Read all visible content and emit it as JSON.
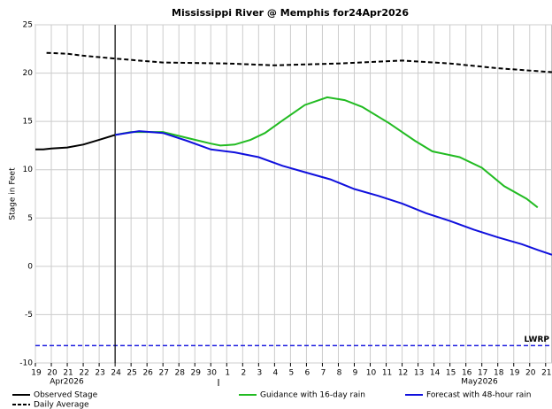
{
  "chart_data": {
    "type": "line",
    "title": "Mississippi River @ Memphis for24Apr2026",
    "y_label": "Stage in Feet",
    "month_labels": [
      {
        "value": 0.9,
        "label": "Apr2026"
      },
      {
        "value": 26.7,
        "label": "May2026"
      }
    ],
    "xlim": [
      0,
      32.4
    ],
    "ylim": [
      -10,
      25
    ],
    "yticks": [
      -10,
      -5,
      0,
      5,
      10,
      15,
      20,
      25
    ],
    "xticks": [
      {
        "value": 0,
        "label": "19"
      },
      {
        "value": 1,
        "label": "20"
      },
      {
        "value": 2,
        "label": "21"
      },
      {
        "value": 3,
        "label": "22"
      },
      {
        "value": 4,
        "label": "23"
      },
      {
        "value": 5,
        "label": "24"
      },
      {
        "value": 6,
        "label": "25"
      },
      {
        "value": 7,
        "label": "26"
      },
      {
        "value": 8,
        "label": "27"
      },
      {
        "value": 9,
        "label": "28"
      },
      {
        "value": 10,
        "label": "29"
      },
      {
        "value": 11,
        "label": "30"
      },
      {
        "value": 12,
        "label": "1"
      },
      {
        "value": 13,
        "label": "2"
      },
      {
        "value": 14,
        "label": "3"
      },
      {
        "value": 15,
        "label": "4"
      },
      {
        "value": 16,
        "label": "5"
      },
      {
        "value": 17,
        "label": "6"
      },
      {
        "value": 18,
        "label": "7"
      },
      {
        "value": 19,
        "label": "8"
      },
      {
        "value": 20,
        "label": "9"
      },
      {
        "value": 21,
        "label": "10"
      },
      {
        "value": 22,
        "label": "11"
      },
      {
        "value": 23,
        "label": "12"
      },
      {
        "value": 24,
        "label": "13"
      },
      {
        "value": 25,
        "label": "14"
      },
      {
        "value": 26,
        "label": "15"
      },
      {
        "value": 27,
        "label": "16"
      },
      {
        "value": 28,
        "label": "17"
      },
      {
        "value": 29,
        "label": "18"
      },
      {
        "value": 30,
        "label": "19"
      },
      {
        "value": 31,
        "label": "20"
      },
      {
        "value": 32,
        "label": "21"
      }
    ],
    "grid": true,
    "current_time": 5,
    "reference_lines": [
      {
        "label": "LWRP",
        "value": -8.2,
        "color": "#2020e0"
      }
    ],
    "series": [
      {
        "name": "Observed Stage",
        "color": "#000000",
        "dash": false,
        "x": [
          0,
          0.5,
          1,
          2,
          3,
          4,
          5
        ],
        "values": [
          12.1,
          12.1,
          12.2,
          12.3,
          12.6,
          13.1,
          13.6
        ]
      },
      {
        "name": "Daily Average",
        "color": "#000000",
        "dash": true,
        "x": [
          0.7,
          2,
          3,
          5,
          8,
          12,
          15,
          19,
          23,
          26,
          29,
          32.4
        ],
        "values": [
          22.1,
          22.0,
          21.8,
          21.5,
          21.1,
          21.0,
          20.8,
          21.0,
          21.3,
          21.0,
          20.5,
          20.1
        ]
      },
      {
        "name": "Guidance with 16-day rain",
        "color": "#22bb22",
        "dash": false,
        "x": [
          5,
          6,
          7,
          8,
          9,
          10,
          11,
          11.6,
          12.5,
          13.5,
          14.4,
          15.5,
          16.9,
          18.3,
          19.4,
          20.5,
          22.2,
          23.8,
          24.9,
          26.6,
          28,
          29.4,
          30.8,
          31.5
        ],
        "values": [
          13.6,
          13.9,
          13.9,
          13.9,
          13.5,
          13.1,
          12.7,
          12.5,
          12.6,
          13.1,
          13.8,
          15.1,
          16.7,
          17.5,
          17.2,
          16.5,
          14.8,
          13.0,
          11.9,
          11.3,
          10.2,
          8.3,
          7.0,
          6.1
        ]
      },
      {
        "name": "Forecast with 48-hour rain",
        "color": "#1010dd",
        "dash": false,
        "x": [
          5,
          6.5,
          8,
          9.5,
          11,
          12.5,
          14,
          15.5,
          17,
          18.5,
          20,
          21.5,
          23,
          24.5,
          26,
          27.5,
          29,
          30.5,
          31.5,
          32.4
        ],
        "values": [
          13.6,
          14.0,
          13.8,
          13.0,
          12.1,
          11.8,
          11.3,
          10.4,
          9.7,
          9.0,
          8.0,
          7.3,
          6.5,
          5.5,
          4.7,
          3.8,
          3.0,
          2.3,
          1.7,
          1.2
        ]
      }
    ]
  }
}
